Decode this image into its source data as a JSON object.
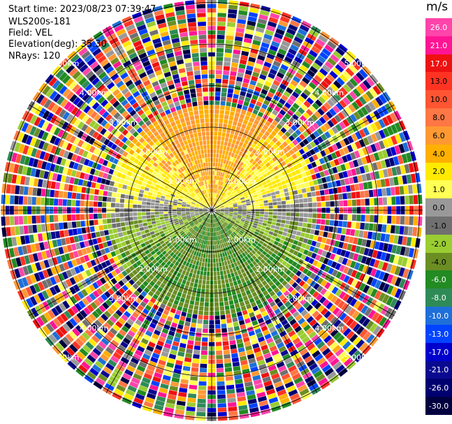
{
  "header": {
    "start_time": "Start time: 2023/08/23 07:39:47",
    "instrument": "WLS200s-181",
    "field": "Field: VEL",
    "elevation": "Elevation(deg): 35.30",
    "nrays": "NRays: 120"
  },
  "chart_data": {
    "type": "heatmap",
    "projection": "polar PPI",
    "field": "VEL",
    "units": "m/s",
    "nrays": 120,
    "range_ring_labels": [
      "1.00km",
      "2.00km",
      "3.00km",
      "4.00km",
      "5.00km"
    ],
    "ring_label_azimuths_deg": [
      315,
      45,
      135,
      225
    ],
    "clean_data_max_range_km": 2.6,
    "pattern": "Near-range ring shows northward sector positive (+2 to +6 m/s, yellow/orange) and southward sector negative (-2 to -6 m/s, green) with near-zero grey band across east-west axis; beyond ~2.6 km data are noise across the full colour scale.",
    "colorbar": {
      "title": "m/s",
      "ticks": [
        "26.0",
        "21.0",
        "17.0",
        "13.0",
        "10.0",
        "8.0",
        "6.0",
        "4.0",
        "2.0",
        "1.0",
        "0.0",
        "-1.0",
        "-2.0",
        "-4.0",
        "-6.0",
        "-8.0",
        "-10.0",
        "-13.0",
        "-17.0",
        "-21.0",
        "-26.0",
        "-30.0"
      ],
      "colors": [
        "#ff44aa",
        "#ff1493",
        "#ee1111",
        "#ff3322",
        "#ff5533",
        "#ff7744",
        "#ff9933",
        "#ffb000",
        "#ffea00",
        "#ffff55",
        "#999999",
        "#707070",
        "#9acd32",
        "#6b8e23",
        "#228b22",
        "#2e8b57",
        "#1e6fd9",
        "#0044ff",
        "#0000cd",
        "#0a0a90",
        "#000070",
        "#000040"
      ]
    },
    "grid": true
  }
}
